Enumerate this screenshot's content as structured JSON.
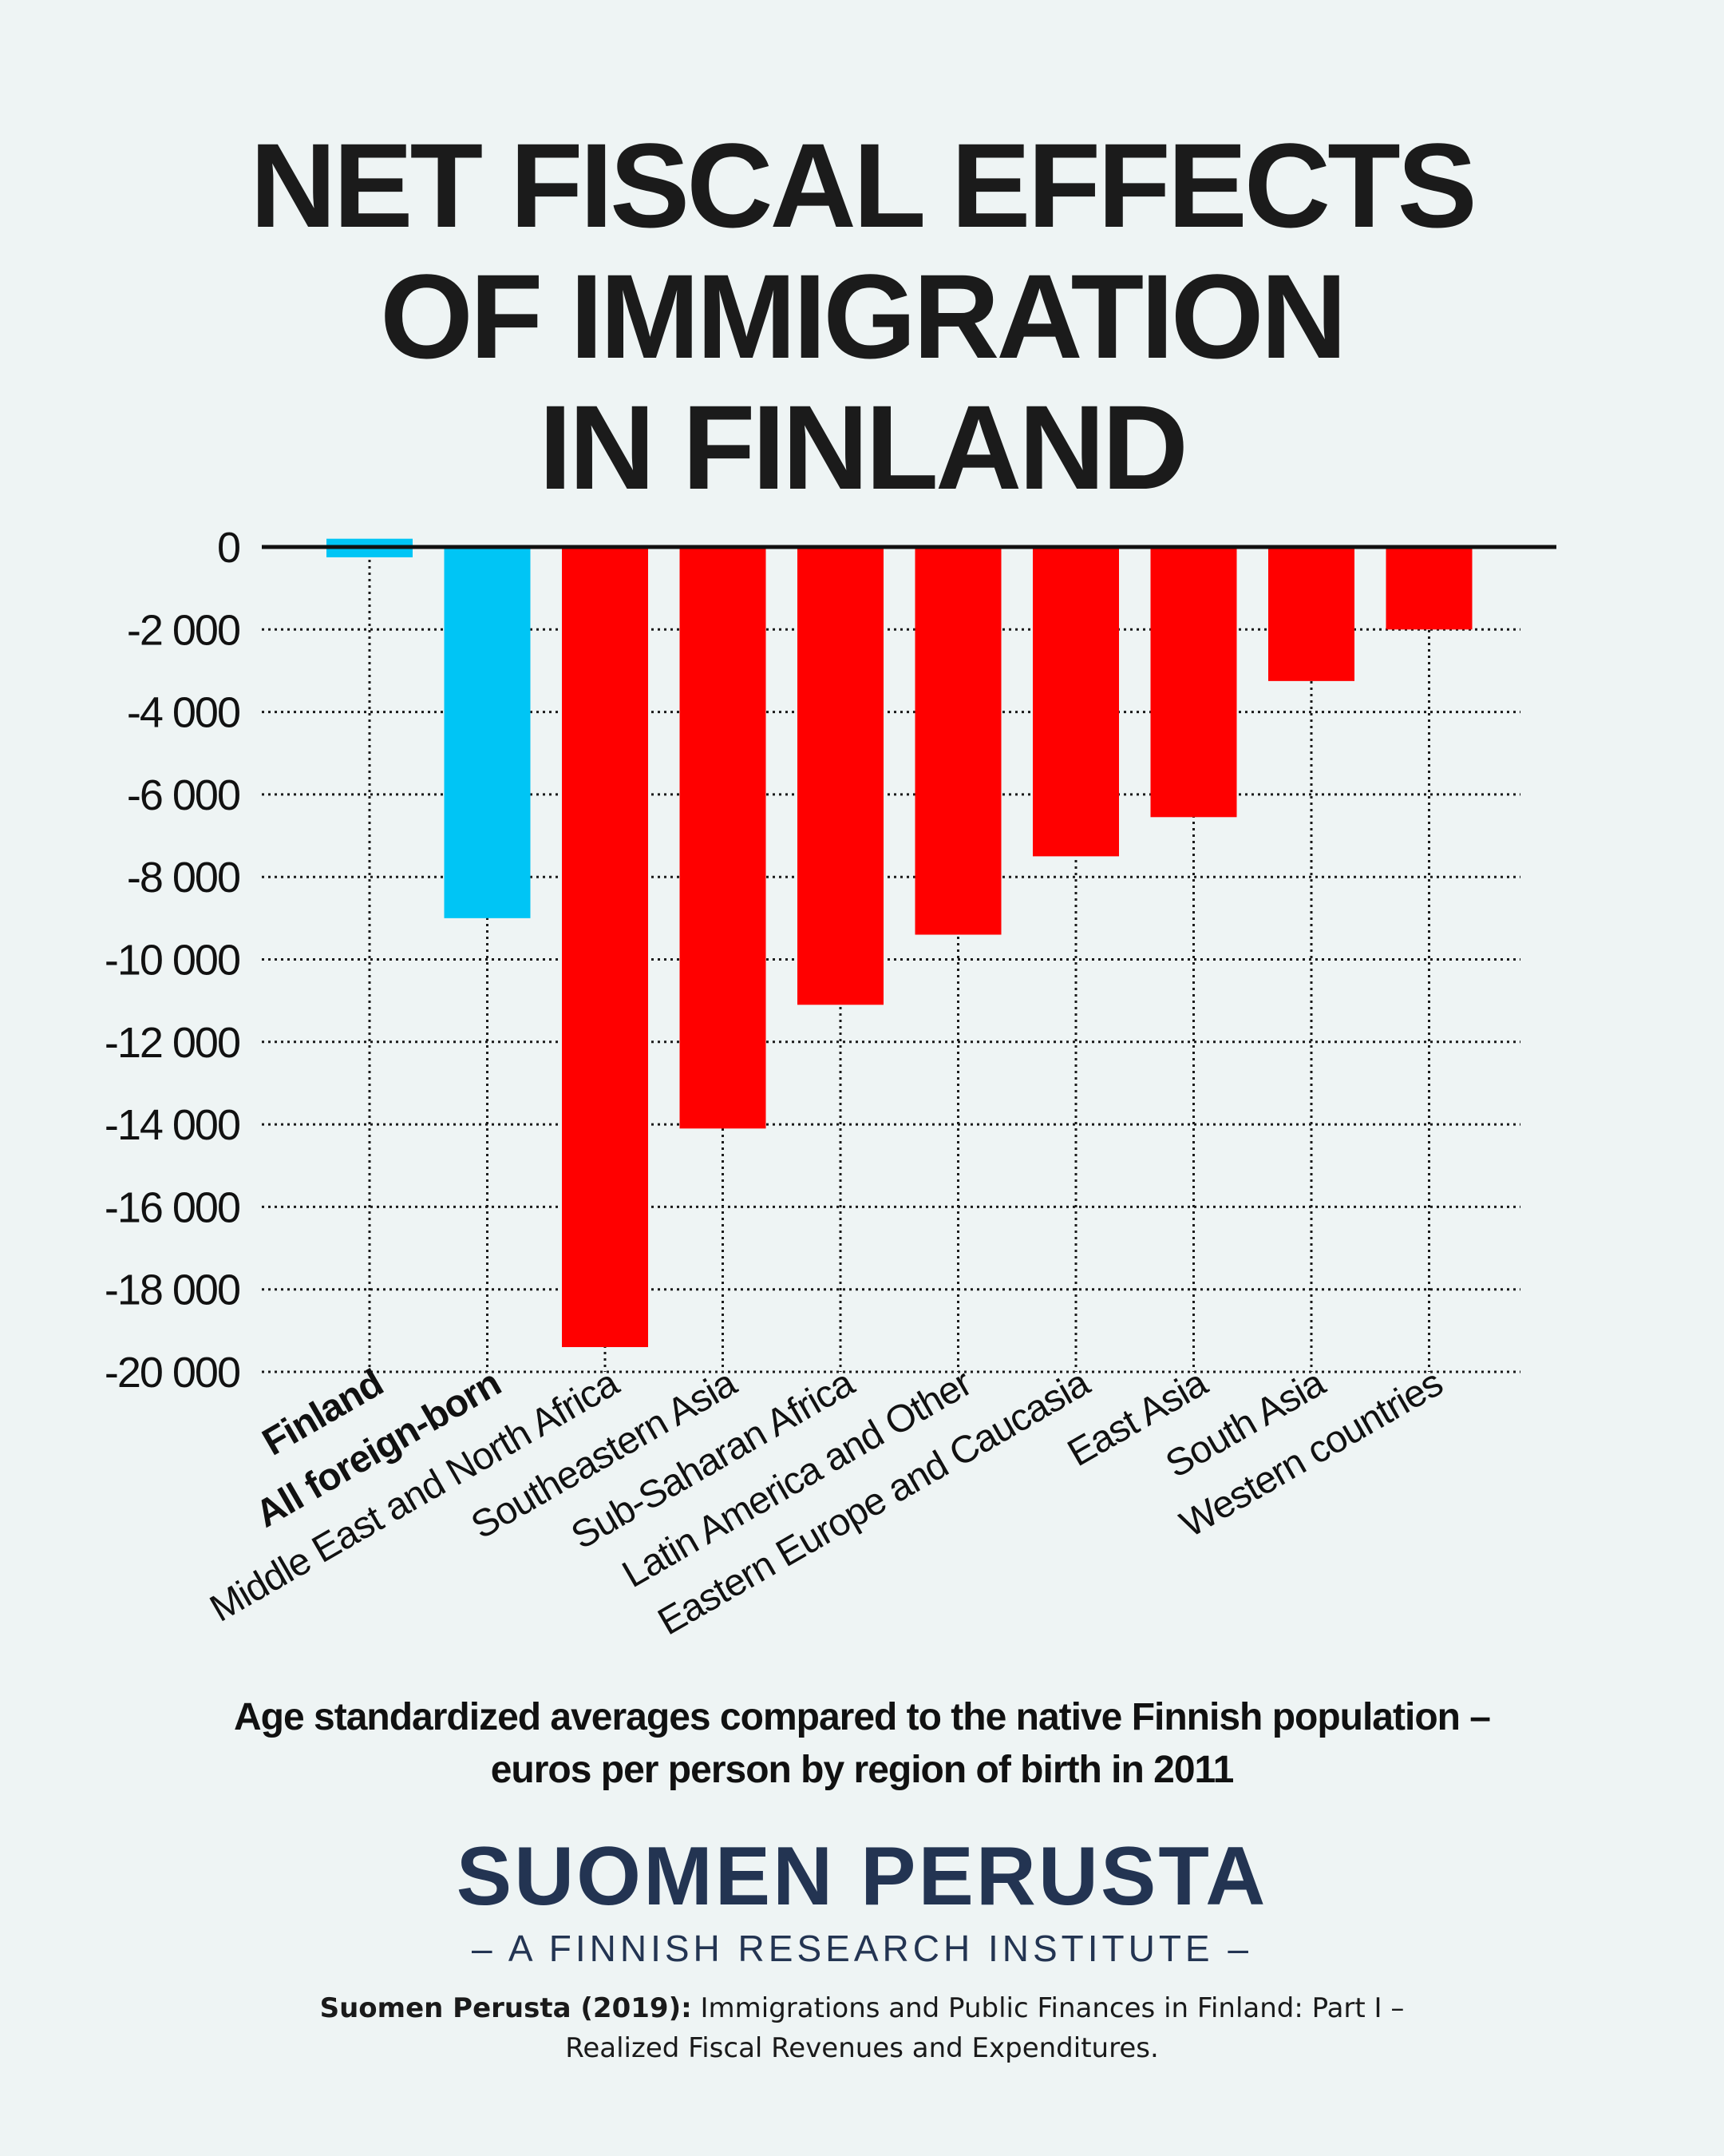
{
  "title": {
    "line1": "NET FISCAL EFFECTS",
    "line2": "OF IMMIGRATION",
    "line3": "IN FINLAND"
  },
  "chart_data": {
    "type": "bar",
    "title": "NET FISCAL EFFECTS OF IMMIGRATION IN FINLAND",
    "xlabel": "",
    "ylabel": "",
    "ylim": [
      -20000,
      0
    ],
    "yticks": [
      0,
      -2000,
      -4000,
      -6000,
      -8000,
      -10000,
      -12000,
      -14000,
      -16000,
      -18000,
      -20000
    ],
    "ytick_labels": [
      "0",
      "-2 000",
      "-4 000",
      "-6 000",
      "-8 000",
      "-10 000",
      "-12 000",
      "-14 000",
      "-16 000",
      "-18 000",
      "-20 000"
    ],
    "grid": true,
    "categories": [
      "Finland",
      "All foreign-born",
      "Middle East and North Africa",
      "Southeastern Asia",
      "Sub-Saharan Africa",
      "Latin America and Other",
      "Eastern Europe and Caucasia",
      "East Asia",
      "South Asia",
      "Western countries"
    ],
    "values": [
      0,
      -9000,
      -19400,
      -14100,
      -11100,
      -9400,
      -7500,
      -6550,
      -3250,
      -2000
    ],
    "finland_bar_range": [
      -250,
      200
    ],
    "bold_categories": [
      "Finland",
      "All foreign-born"
    ],
    "bar_colors": [
      "#00c5f5",
      "#00c5f5",
      "#ff0000",
      "#ff0000",
      "#ff0000",
      "#ff0000",
      "#ff0000",
      "#ff0000",
      "#ff0000",
      "#ff0000"
    ]
  },
  "subtitle": {
    "line1": "Age standardized averages compared to the native Finnish population –",
    "line2": "euros per person by region of birth in 2011"
  },
  "brand": {
    "name": "SUOMEN PERUSTA",
    "tagline": "– A FINNISH RESEARCH INSTITUTE –"
  },
  "source": {
    "bold": "Suomen Perusta (2019):",
    "text1": " Immigrations and Public Finances in Finland: Part I –",
    "text2": "Realized Fiscal Revenues and Expenditures."
  }
}
